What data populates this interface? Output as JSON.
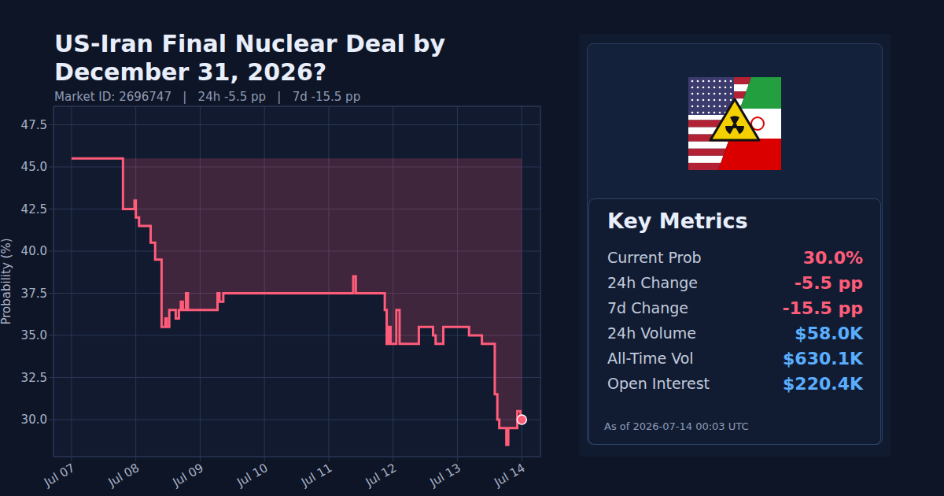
{
  "chart_data": {
    "type": "line",
    "title": "US-Iran Final Nuclear Deal by December 31, 2026?",
    "subtitle": "Market ID: 2696747   |   24h -5.5 pp   |   7d -15.5 pp",
    "y_label": "Probability (%)",
    "x": [
      7.0,
      7.8,
      7.98,
      8.0,
      8.05,
      8.23,
      8.3,
      8.4,
      8.46,
      8.48,
      8.52,
      8.62,
      8.67,
      8.7,
      8.73,
      8.78,
      8.81,
      9.27,
      9.3,
      9.36,
      11.38,
      11.42,
      11.87,
      11.9,
      11.93,
      11.96,
      12.05,
      12.1,
      12.4,
      12.62,
      12.66,
      12.78,
      13.18,
      13.38,
      13.58,
      13.62,
      13.65,
      13.76,
      13.79,
      13.93,
      13.98,
      14.0
    ],
    "values": [
      45.5,
      42.5,
      43.0,
      42.0,
      41.5,
      40.5,
      39.5,
      35.5,
      36.0,
      35.5,
      36.5,
      36.0,
      36.5,
      37.0,
      36.5,
      37.5,
      36.5,
      37.5,
      37.0,
      37.5,
      38.5,
      37.5,
      36.5,
      34.5,
      35.5,
      34.5,
      36.5,
      34.5,
      35.5,
      35.0,
      34.5,
      35.5,
      35.0,
      34.5,
      31.5,
      30.0,
      29.5,
      28.5,
      29.5,
      30.5,
      30.0,
      30.0
    ],
    "color": "#ff5c7a",
    "xlim": [
      6.72,
      14.29
    ],
    "ylim": [
      27.8,
      48.6
    ],
    "xticks": [
      {
        "value": 7,
        "label": "Jul 07"
      },
      {
        "value": 8,
        "label": "Jul 08"
      },
      {
        "value": 9,
        "label": "Jul 09"
      },
      {
        "value": 10,
        "label": "Jul 10"
      },
      {
        "value": 11,
        "label": "Jul 11"
      },
      {
        "value": 12,
        "label": "Jul 12"
      },
      {
        "value": 13,
        "label": "Jul 13"
      },
      {
        "value": 14,
        "label": "Jul 14"
      }
    ],
    "yticks": [
      {
        "value": 30,
        "label": "30.0"
      },
      32.5,
      {
        "value": 35,
        "label": "35.0"
      },
      37.5,
      {
        "value": 40,
        "label": "40.0"
      },
      42.5,
      {
        "value": 45,
        "label": "45.0"
      },
      47.5
    ],
    "grid": true
  },
  "panel": {
    "heading": "Key Metrics",
    "metrics": [
      {
        "label": "Current Prob",
        "value": "30.0%",
        "color": "#ff5c7a"
      },
      {
        "label": "24h Change",
        "value": "-5.5 pp",
        "color": "#ff5c7a"
      },
      {
        "label": "7d Change",
        "value": "-15.5 pp",
        "color": "#ff5c7a"
      },
      {
        "label": "24h Volume",
        "value": "$58.0K",
        "color": "#5aaeff"
      },
      {
        "label": "All-Time Vol",
        "value": "$630.1K",
        "color": "#5aaeff"
      },
      {
        "label": "Open Interest",
        "value": "$220.4K",
        "color": "#5aaeff"
      }
    ],
    "as_of": "As of 2026-07-14 00:03 UTC"
  }
}
